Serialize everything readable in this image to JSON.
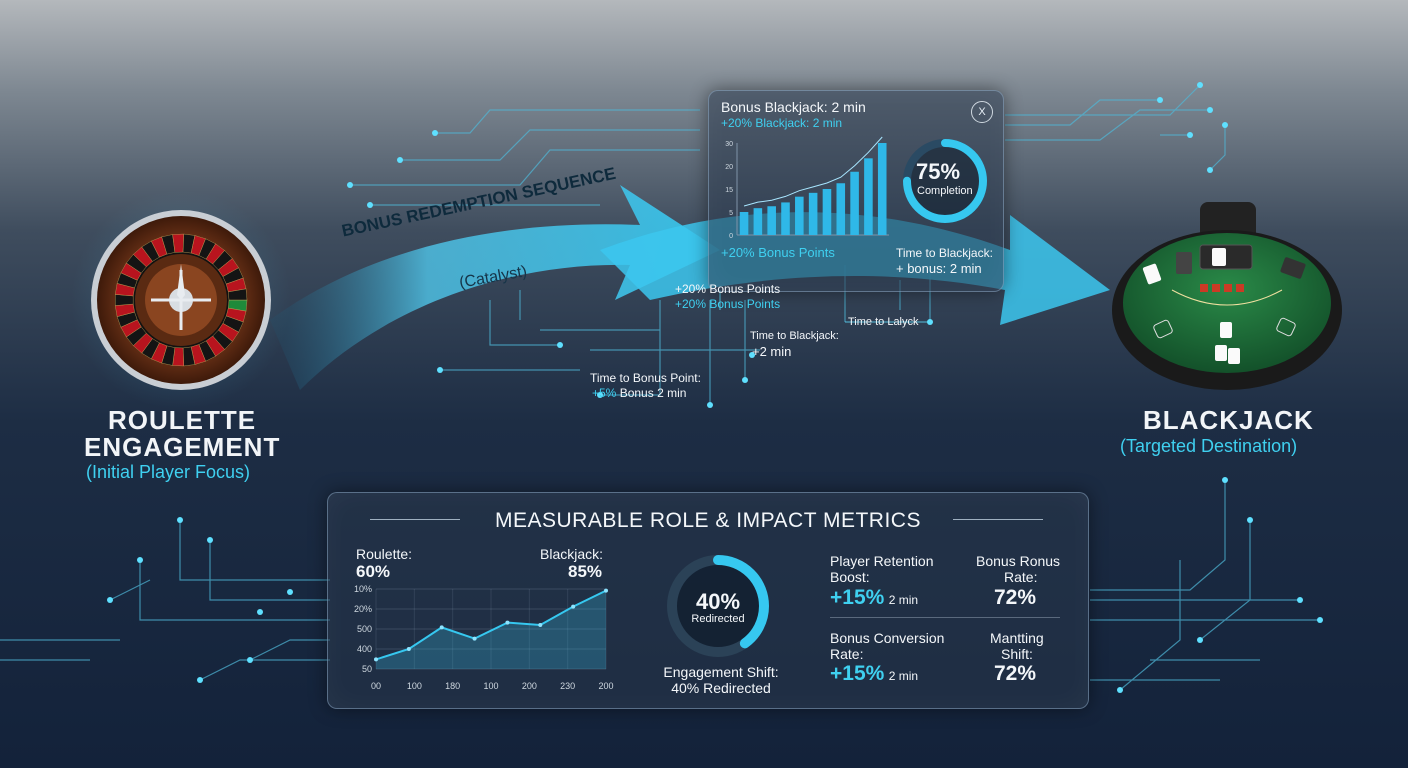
{
  "roulette": {
    "title_line1": "ROULETTE",
    "title_line2": "ENGAGEMENT",
    "subtitle": "(Initial Player Focus)"
  },
  "blackjack": {
    "title": "BLACKJACK",
    "subtitle": "(Targeted Destination)"
  },
  "arrow": {
    "label": "BONUS REDEMPTION SEQUENCE",
    "sublabel": "(Catalyst)"
  },
  "popup": {
    "title": "Bonus Blackjack: 2 min",
    "subtitle": "+20% Blackjack: 2 min",
    "close_label": "X",
    "y_ticks": [
      "30",
      "20",
      "15",
      "5",
      "0"
    ],
    "bar_values": [
      12,
      14,
      15,
      17,
      20,
      22,
      24,
      27,
      33,
      40,
      48
    ],
    "completion_pct": "75%",
    "completion_label": "Completion",
    "completion_value": 0.75,
    "bonus_points": "+20% Bonus Points",
    "time_label": "Time to Blackjack:",
    "time_value": "+ bonus: 2 min"
  },
  "callouts": {
    "c1_line1": "+20% Bonus Points",
    "c1_line2": "+20% Bonus Points",
    "c2_line1": "Time to Blackjack:",
    "c2_line2": "+2 min",
    "c3": "Time to Lalyck",
    "c4_line1": "Time to Bonus Point:",
    "c4_line2_pct": "+5%",
    "c4_line2_rest": "Bonus  2 min"
  },
  "metrics": {
    "title": "MEASURABLE ROLE & IMPACT METRICS",
    "roulette_label": "Roulette:",
    "roulette_value": "60%",
    "blackjack_label": "Blackjack:",
    "blackjack_value": "85%",
    "donut_value": "40%",
    "donut_label": "Redirected",
    "donut_fraction": 0.4,
    "shift_label": "Engagement Shift:",
    "shift_value": "40% Redirected",
    "retention_label_1": "Player Retention",
    "retention_label_2": "Boost:",
    "retention_value": "+15%",
    "retention_unit": "2 min",
    "bonus_rate_label_1": "Bonus Ronus",
    "bonus_rate_label_2": "Rate:",
    "bonus_rate_value": "72%",
    "conversion_label_1": "Bonus Conversion",
    "conversion_label_2": "Rate:",
    "conversion_value": "+15%",
    "conversion_unit": "2 min",
    "mantting_label_1": "Mantting",
    "mantting_label_2": "Shift:",
    "mantting_value": "72%"
  },
  "chart_data": {
    "type": "area",
    "x_ticks": [
      "00",
      "100",
      "180",
      "100",
      "200",
      "230",
      "200"
    ],
    "y_ticks": [
      "10%",
      "20%",
      "500",
      "400",
      "50"
    ],
    "values": [
      0.12,
      0.25,
      0.52,
      0.38,
      0.58,
      0.55,
      0.78,
      0.98
    ]
  },
  "colors": {
    "accent": "#3fd0f0",
    "felt": "#1f6b38"
  }
}
